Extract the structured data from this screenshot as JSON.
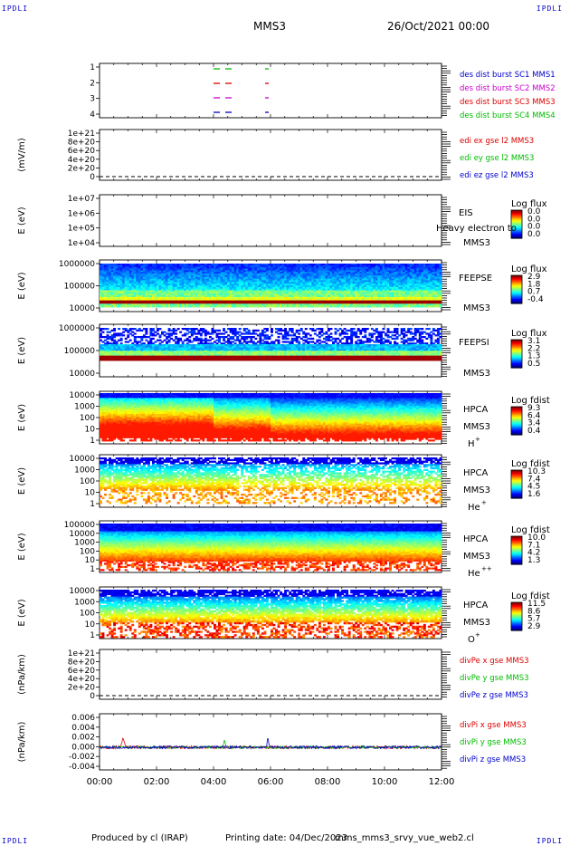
{
  "corners": {
    "tl": "IPDLI",
    "tr": "IPDLI",
    "bl": "IPDLI",
    "br": "IPDLI"
  },
  "header": {
    "spacecraft": "MMS3",
    "date": "26/Oct/2021 00:00"
  },
  "footer": {
    "produced": "Produced by cl (IRAP)",
    "printing": "Printing date: 04/Dec/2023",
    "file": "mms_mms3_srvy_vue_web2.cl"
  },
  "colors": {
    "red": "#dd0000",
    "green": "#00bb00",
    "blue": "#0000cc",
    "magenta": "#cc00cc"
  },
  "chart_data": [
    {
      "type": "scatter",
      "name": "burst-availability",
      "yticks": [
        "1",
        "2",
        "3",
        "4"
      ],
      "legend": [
        {
          "text": "des dist burst SC1 MMS1",
          "color": "#0000cc"
        },
        {
          "text": "des dist burst SC2 MMS2",
          "color": "#cc00cc"
        },
        {
          "text": "des dist burst SC3 MMS3",
          "color": "#dd0000"
        },
        {
          "text": "des dist burst SC4 MMS4",
          "color": "#00bb00"
        }
      ]
    },
    {
      "type": "line",
      "ylabel": "(mV/m)",
      "yticks": [
        "1e+21",
        "8e+20",
        "6e+20",
        "4e+20",
        "2e+20",
        "0"
      ],
      "legend": [
        {
          "text": "edi ex gse l2 MMS3",
          "color": "#dd0000"
        },
        {
          "text": "edi ey gse l2 MMS3",
          "color": "#00bb00"
        },
        {
          "text": "edi ez gse l2 MMS3",
          "color": "#0000cc"
        }
      ]
    },
    {
      "type": "heatmap",
      "ylabel": "E (eV)",
      "yticks": [
        "1e+07",
        "1e+06",
        "1e+05",
        "1e+04"
      ],
      "label1": "EIS",
      "label2": "MMS3",
      "overlay": "Heavy electron to",
      "cbtitle": "Log flux",
      "cbticks": [
        "0.0",
        "0.0",
        "0.0",
        "0.0"
      ]
    },
    {
      "type": "heatmap",
      "ylabel": "E (eV)",
      "yticks": [
        "1000000",
        "100000",
        "10000"
      ],
      "label1": "FEEPSE",
      "label2": "MMS3",
      "cbtitle": "Log flux",
      "cbticks": [
        "2.9",
        "1.8",
        "0.7",
        "-0.4"
      ]
    },
    {
      "type": "heatmap",
      "ylabel": "E (eV)",
      "yticks": [
        "1000000",
        "100000",
        "10000"
      ],
      "label1": "FEEPSI",
      "label2": "MMS3",
      "cbtitle": "Log flux",
      "cbticks": [
        "3.1",
        "2.2",
        "1.3",
        "0.5"
      ]
    },
    {
      "type": "heatmap",
      "ylabel": "E (eV)",
      "yticks": [
        "10000",
        "1000",
        "100",
        "10",
        "1"
      ],
      "label1": "HPCA",
      "label2": "MMS3",
      "species": "H",
      "sup": "+",
      "cbtitle": "Log fdist",
      "cbticks": [
        "9.3",
        "6.4",
        "3.4",
        "0.4"
      ]
    },
    {
      "type": "heatmap",
      "ylabel": "E (eV)",
      "yticks": [
        "10000",
        "1000",
        "100",
        "10",
        "1"
      ],
      "label1": "HPCA",
      "label2": "MMS3",
      "species": "He",
      "sup": "+",
      "cbtitle": "Log fdist",
      "cbticks": [
        "10.3",
        "7.4",
        "4.5",
        "1.6"
      ]
    },
    {
      "type": "heatmap",
      "ylabel": "E (eV)",
      "yticks": [
        "100000",
        "10000",
        "1000",
        "100",
        "10",
        "1"
      ],
      "label1": "HPCA",
      "label2": "MMS3",
      "species": "He",
      "sup": "++",
      "cbtitle": "Log fdist",
      "cbticks": [
        "10.0",
        "7.1",
        "4.2",
        "1.3"
      ]
    },
    {
      "type": "heatmap",
      "ylabel": "E (eV)",
      "yticks": [
        "10000",
        "1000",
        "100",
        "10",
        "1"
      ],
      "label1": "HPCA",
      "label2": "MMS3",
      "species": "O",
      "sup": "+",
      "cbtitle": "Log fdist",
      "cbticks": [
        "11.5",
        "8.6",
        "5.7",
        "2.9"
      ]
    },
    {
      "type": "line",
      "ylabel": "(nPa/km)",
      "yticks": [
        "1e+21",
        "8e+20",
        "6e+20",
        "4e+20",
        "2e+20",
        "0"
      ],
      "legend": [
        {
          "text": "divPe x gse MMS3",
          "color": "#dd0000"
        },
        {
          "text": "divPe y gse MMS3",
          "color": "#00bb00"
        },
        {
          "text": "divPe z gse MMS3",
          "color": "#0000cc"
        }
      ]
    },
    {
      "type": "line",
      "ylabel": "(nPa/km)",
      "yticks": [
        "0.006",
        "0.004",
        "0.002",
        "0.000",
        "-0.002",
        "-0.004"
      ],
      "legend": [
        {
          "text": "divPi x gse MMS3",
          "color": "#dd0000"
        },
        {
          "text": "divPi y gse MMS3",
          "color": "#00bb00"
        },
        {
          "text": "divPi z gse MMS3",
          "color": "#0000cc"
        }
      ]
    }
  ],
  "x_axis": {
    "ticks": [
      "00:00",
      "02:00",
      "04:00",
      "06:00",
      "08:00",
      "10:00",
      "12:00"
    ]
  }
}
